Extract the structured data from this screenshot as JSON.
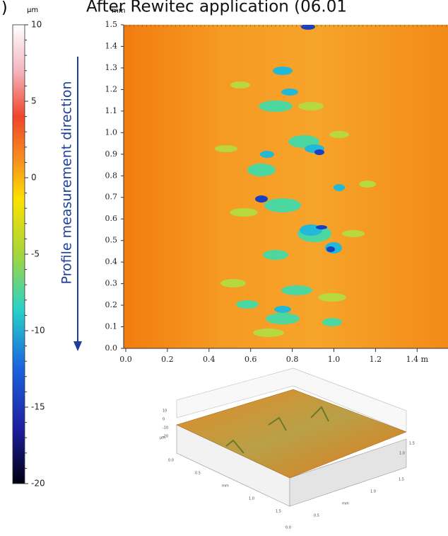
{
  "panel_label": ")",
  "title": "After Rewitec application (06.01",
  "colorbar": {
    "unit": "μm",
    "ticks": [
      "10",
      "5",
      "0",
      "-5",
      "-10",
      "-15",
      "-20"
    ]
  },
  "direction_label": "Profile measurement direction",
  "map": {
    "y_unit": "mm",
    "yticks": [
      "1.5",
      "1.4",
      "1.3",
      "1.2",
      "1.1",
      "1.0",
      "0.9",
      "0.8",
      "0.7",
      "0.6",
      "0.5",
      "0.4",
      "0.3",
      "0.2",
      "0.1",
      "0.0"
    ],
    "xticks": [
      "0.0",
      "0.2",
      "0.4",
      "0.6",
      "0.8",
      "1.0",
      "1.2",
      "1.4 m"
    ]
  },
  "view3d": {
    "z_unit": "μm",
    "zticks": [
      "10",
      "0",
      "-10",
      "-20"
    ],
    "left_axis": [
      "0.0",
      "0.5",
      "mm",
      "1.0",
      "1.5"
    ],
    "right_axis": [
      "0.0",
      "0.5",
      "mm",
      "1.0",
      "1.5"
    ],
    "back_axis": [
      "1.0",
      "1.5"
    ]
  }
}
